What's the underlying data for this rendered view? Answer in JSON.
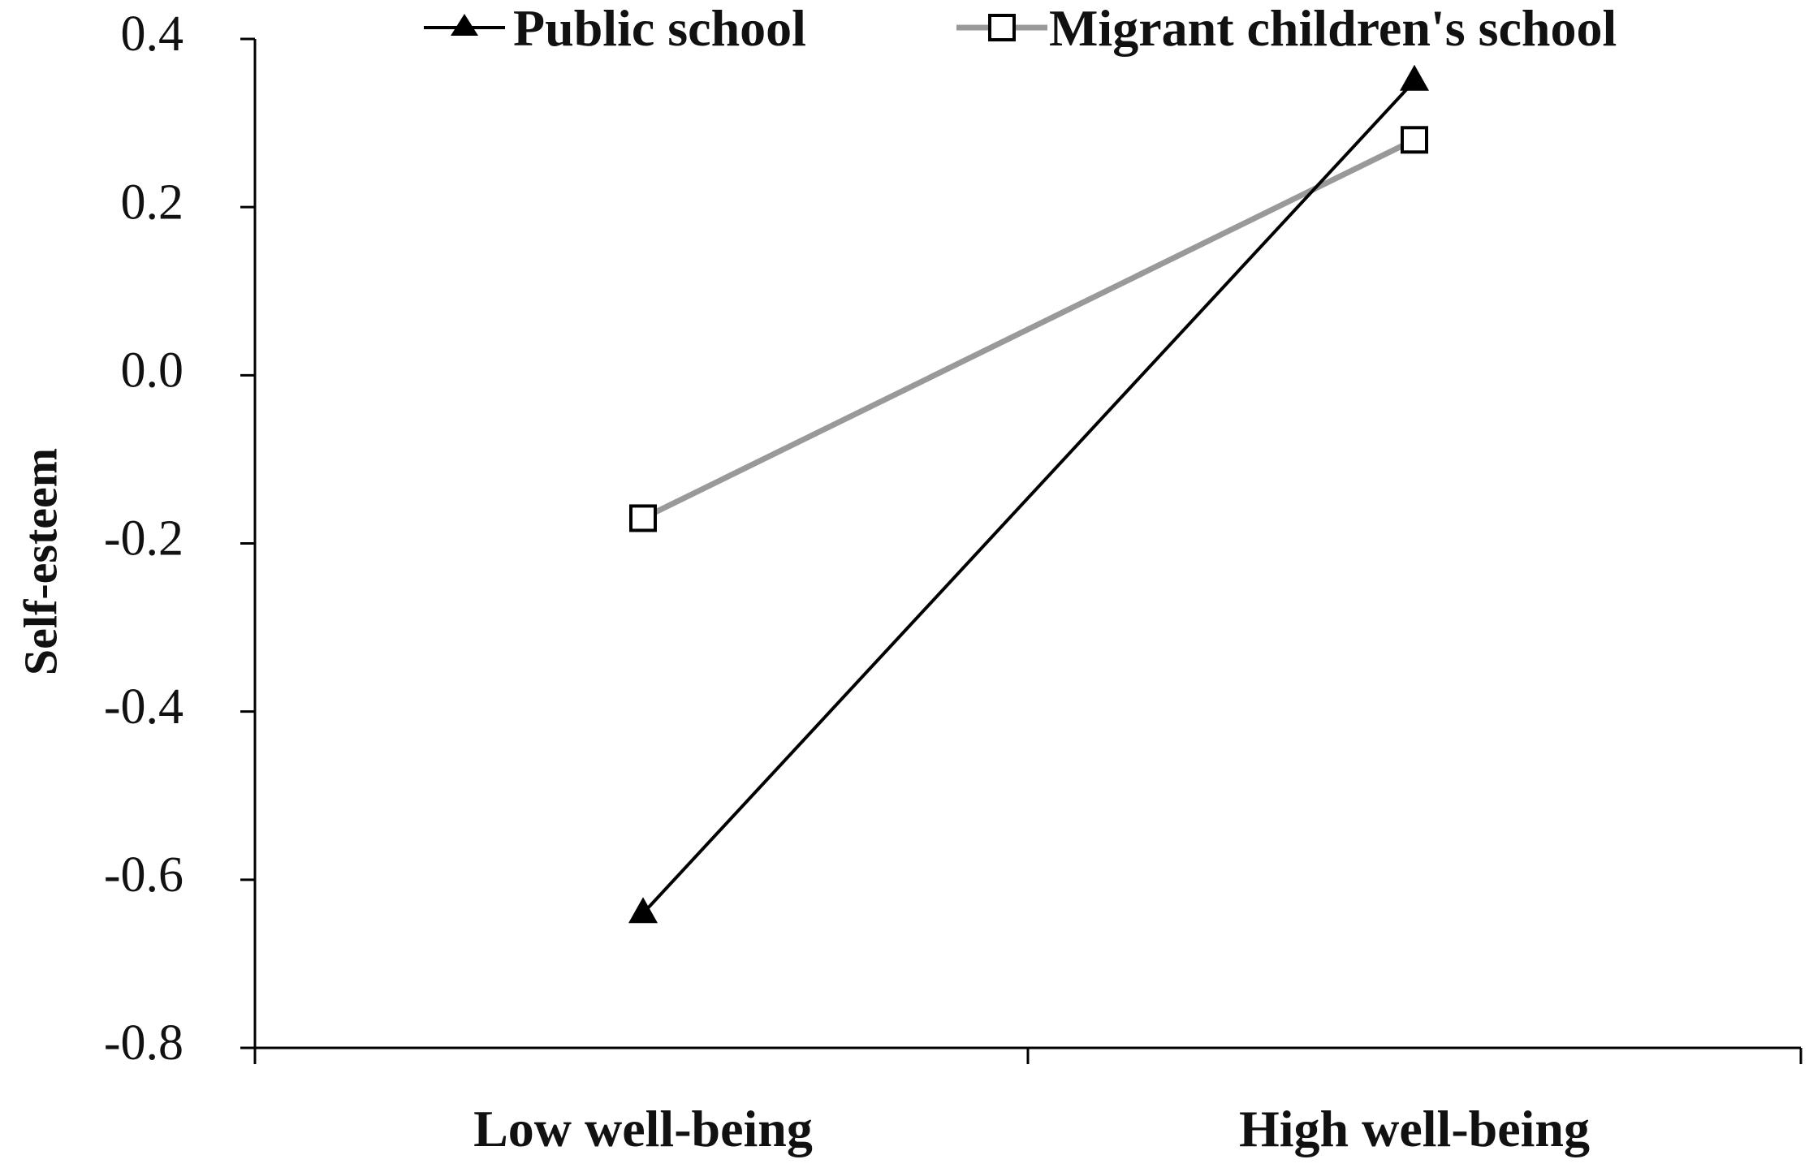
{
  "chart_data": {
    "type": "line",
    "categories": [
      "Low well-being",
      "High well-being"
    ],
    "series": [
      {
        "name": "Public school",
        "values": [
          -0.64,
          0.35
        ],
        "color": "#000000",
        "marker": "filled-triangle"
      },
      {
        "name": "Migrant children's school",
        "values": [
          -0.17,
          0.28
        ],
        "color": "#999999",
        "marker": "open-square"
      }
    ],
    "ylabel": "Self-esteem",
    "xlabel": "",
    "ylim": [
      -0.8,
      0.4
    ],
    "yticks": [
      "0.4",
      "0.2",
      "0.0",
      "-0.2",
      "-0.4",
      "-0.6",
      "-0.8"
    ],
    "ytick_values": [
      0.4,
      0.2,
      0.0,
      -0.2,
      -0.4,
      -0.6,
      -0.8
    ],
    "legend_position": "top",
    "grid": false
  }
}
